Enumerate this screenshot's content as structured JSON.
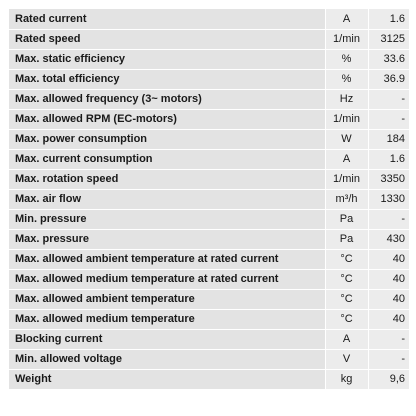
{
  "specs": [
    {
      "name": "Rated current",
      "unit": "A",
      "value": "1.6"
    },
    {
      "name": "Rated speed",
      "unit": "1/min",
      "value": "3125"
    },
    {
      "name": "Max. static efficiency",
      "unit": "%",
      "value": "33.6"
    },
    {
      "name": "Max. total efficiency",
      "unit": "%",
      "value": "36.9"
    },
    {
      "name": "Max. allowed frequency (3~ motors)",
      "unit": "Hz",
      "value": "-"
    },
    {
      "name": "Max. allowed RPM (EC-motors)",
      "unit": "1/min",
      "value": "-"
    },
    {
      "name": "Max. power consumption",
      "unit": "W",
      "value": "184"
    },
    {
      "name": "Max. current consumption",
      "unit": "A",
      "value": "1.6"
    },
    {
      "name": "Max. rotation speed",
      "unit": "1/min",
      "value": "3350"
    },
    {
      "name": "Max. air flow",
      "unit": "m³/h",
      "value": "1330"
    },
    {
      "name": "Min. pressure",
      "unit": "Pa",
      "value": "-"
    },
    {
      "name": "Max. pressure",
      "unit": "Pa",
      "value": "430"
    },
    {
      "name": "Max. allowed ambient temperature at rated current",
      "unit": "°C",
      "value": "40"
    },
    {
      "name": "Max. allowed medium temperature at rated current",
      "unit": "°C",
      "value": "40"
    },
    {
      "name": "Max. allowed ambient temperature",
      "unit": "°C",
      "value": "40"
    },
    {
      "name": "Max. allowed medium temperature",
      "unit": "°C",
      "value": "40"
    },
    {
      "name": "Blocking current",
      "unit": "A",
      "value": "-"
    },
    {
      "name": "Min. allowed voltage",
      "unit": "V",
      "value": "-"
    },
    {
      "name": "Weight",
      "unit": "kg",
      "value": "9,6"
    }
  ]
}
